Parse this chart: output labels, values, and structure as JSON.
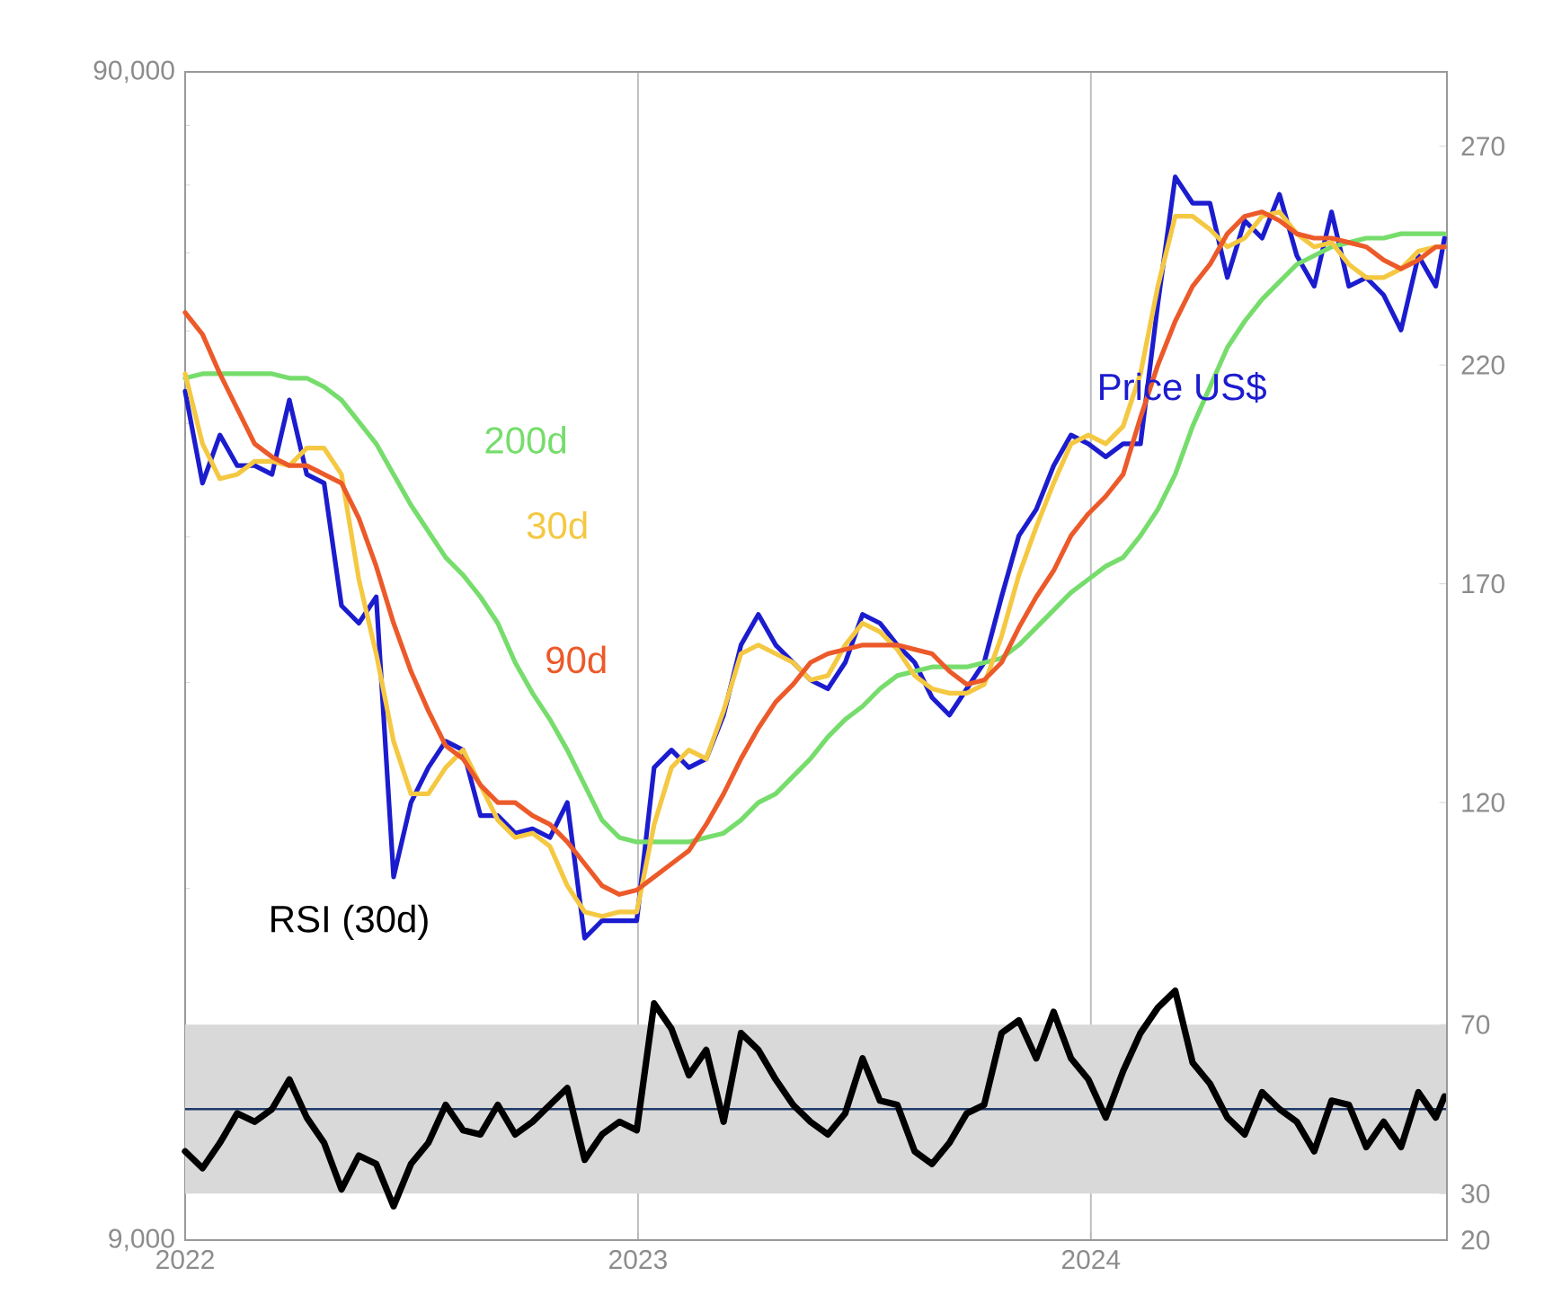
{
  "chart_data": {
    "type": "line",
    "x": [
      "2022-01-01",
      "2022-01-15",
      "2022-01-29",
      "2022-02-12",
      "2022-02-26",
      "2022-03-12",
      "2022-03-26",
      "2022-04-09",
      "2022-04-23",
      "2022-05-07",
      "2022-05-21",
      "2022-06-04",
      "2022-06-18",
      "2022-07-02",
      "2022-07-16",
      "2022-07-30",
      "2022-08-13",
      "2022-08-27",
      "2022-09-10",
      "2022-09-24",
      "2022-10-08",
      "2022-10-22",
      "2022-11-05",
      "2022-11-19",
      "2022-12-03",
      "2022-12-17",
      "2022-12-31",
      "2023-01-14",
      "2023-01-28",
      "2023-02-11",
      "2023-02-25",
      "2023-03-11",
      "2023-03-25",
      "2023-04-08",
      "2023-04-22",
      "2023-05-06",
      "2023-05-20",
      "2023-06-03",
      "2023-06-17",
      "2023-07-01",
      "2023-07-15",
      "2023-07-29",
      "2023-08-12",
      "2023-08-26",
      "2023-09-09",
      "2023-09-23",
      "2023-10-07",
      "2023-10-21",
      "2023-11-04",
      "2023-11-18",
      "2023-12-02",
      "2023-12-16",
      "2023-12-30",
      "2024-01-13",
      "2024-01-27",
      "2024-02-10",
      "2024-02-24",
      "2024-03-09",
      "2024-03-23",
      "2024-04-06",
      "2024-04-20",
      "2024-05-04",
      "2024-05-18",
      "2024-06-01",
      "2024-06-15",
      "2024-06-29",
      "2024-07-13",
      "2024-07-27",
      "2024-08-10",
      "2024-08-24",
      "2024-09-07",
      "2024-09-21",
      "2024-10-05",
      "2024-10-12"
    ],
    "series": [
      {
        "name": "Price US$",
        "color": "#1c1ccf",
        "axis": "y2",
        "values": [
          214,
          193,
          204,
          197,
          197,
          195,
          212,
          195,
          193,
          165,
          161,
          167,
          103,
          120,
          128,
          134,
          132,
          117,
          117,
          113,
          114,
          112,
          120,
          89,
          93,
          93,
          93,
          128,
          132,
          128,
          130,
          140,
          156,
          163,
          156,
          152,
          148,
          146,
          152,
          163,
          161,
          156,
          152,
          144,
          140,
          146,
          152,
          167,
          181,
          187,
          197,
          204,
          202,
          199,
          202,
          202,
          234,
          263,
          257,
          257,
          240,
          253,
          249,
          259,
          245,
          238,
          255,
          238,
          240,
          236,
          228,
          245,
          238,
          249
        ]
      },
      {
        "name": "200d",
        "color": "#76dd6c",
        "axis": "y2",
        "values": [
          217,
          218,
          218,
          218,
          218,
          218,
          217,
          217,
          215,
          212,
          207,
          202,
          195,
          188,
          182,
          176,
          172,
          167,
          161,
          152,
          145,
          139,
          132,
          124,
          116,
          112,
          111,
          111,
          111,
          111,
          112,
          113,
          116,
          120,
          122,
          126,
          130,
          135,
          139,
          142,
          146,
          149,
          150,
          151,
          151,
          151,
          152,
          153,
          156,
          160,
          164,
          168,
          171,
          174,
          176,
          181,
          187,
          195,
          206,
          215,
          224,
          230,
          235,
          239,
          243,
          245,
          247,
          248,
          249,
          249,
          250,
          250,
          250,
          250
        ]
      },
      {
        "name": "30d",
        "color": "#f5c842",
        "axis": "y2",
        "values": [
          218,
          202,
          194,
          195,
          198,
          198,
          197,
          201,
          201,
          195,
          171,
          154,
          134,
          122,
          122,
          128,
          132,
          124,
          116,
          112,
          113,
          110,
          101,
          95,
          94,
          95,
          95,
          115,
          128,
          132,
          130,
          141,
          154,
          156,
          154,
          152,
          148,
          149,
          156,
          161,
          159,
          155,
          149,
          146,
          145,
          145,
          147,
          158,
          172,
          183,
          193,
          202,
          204,
          202,
          206,
          218,
          238,
          254,
          254,
          251,
          247,
          249,
          254,
          255,
          250,
          247,
          248,
          243,
          240,
          240,
          242,
          246,
          247,
          247
        ]
      },
      {
        "name": "90d",
        "color": "#ec5a2a",
        "axis": "y2",
        "values": [
          232,
          227,
          218,
          210,
          202,
          199,
          197,
          197,
          195,
          193,
          185,
          174,
          161,
          150,
          141,
          133,
          130,
          124,
          120,
          120,
          117,
          115,
          111,
          106,
          101,
          99,
          100,
          103,
          106,
          109,
          115,
          122,
          130,
          137,
          143,
          147,
          152,
          154,
          155,
          156,
          156,
          156,
          155,
          154,
          150,
          147,
          148,
          152,
          160,
          167,
          173,
          181,
          186,
          190,
          195,
          208,
          220,
          230,
          238,
          243,
          250,
          254,
          255,
          253,
          250,
          249,
          249,
          248,
          247,
          244,
          242,
          244,
          247,
          247
        ]
      },
      {
        "name": "RSI (30d)",
        "color": "#000000",
        "axis": "y3",
        "values": [
          40,
          36,
          42,
          49,
          47,
          50,
          57,
          48,
          42,
          31,
          39,
          37,
          27,
          37,
          42,
          51,
          45,
          44,
          51,
          44,
          47,
          51,
          55,
          38,
          44,
          47,
          45,
          75,
          69,
          58,
          64,
          47,
          68,
          64,
          57,
          51,
          47,
          44,
          49,
          62,
          52,
          51,
          40,
          37,
          42,
          49,
          51,
          68,
          71,
          62,
          73,
          62,
          57,
          48,
          59,
          68,
          74,
          78,
          61,
          56,
          48,
          44,
          54,
          50,
          47,
          40,
          52,
          51,
          41,
          47,
          41,
          54,
          48,
          53
        ]
      }
    ],
    "xlim": [
      "2022-01-01",
      "2024-10-14"
    ],
    "xticks": [
      "2022",
      "2023",
      "2024"
    ],
    "ylim": [
      9000,
      90000
    ],
    "yticks": [
      {
        "value": 9000,
        "label": "9,000"
      },
      {
        "value": 90000,
        "label": "90,000"
      }
    ],
    "log": "y",
    "y2lim": [
      20,
      287
    ],
    "y2ticks": [
      20,
      120,
      170,
      220,
      270
    ],
    "y3lim": [
      19,
      295.5
    ],
    "y3ticks": [
      30,
      70
    ],
    "grid": "x",
    "bands": [
      {
        "axis": "y3",
        "from": 30,
        "to": 70,
        "color": "#d9d9d9"
      }
    ],
    "ref_lines": [
      {
        "axis": "y3",
        "value": 50,
        "color": "#1f3a68"
      }
    ]
  }
}
